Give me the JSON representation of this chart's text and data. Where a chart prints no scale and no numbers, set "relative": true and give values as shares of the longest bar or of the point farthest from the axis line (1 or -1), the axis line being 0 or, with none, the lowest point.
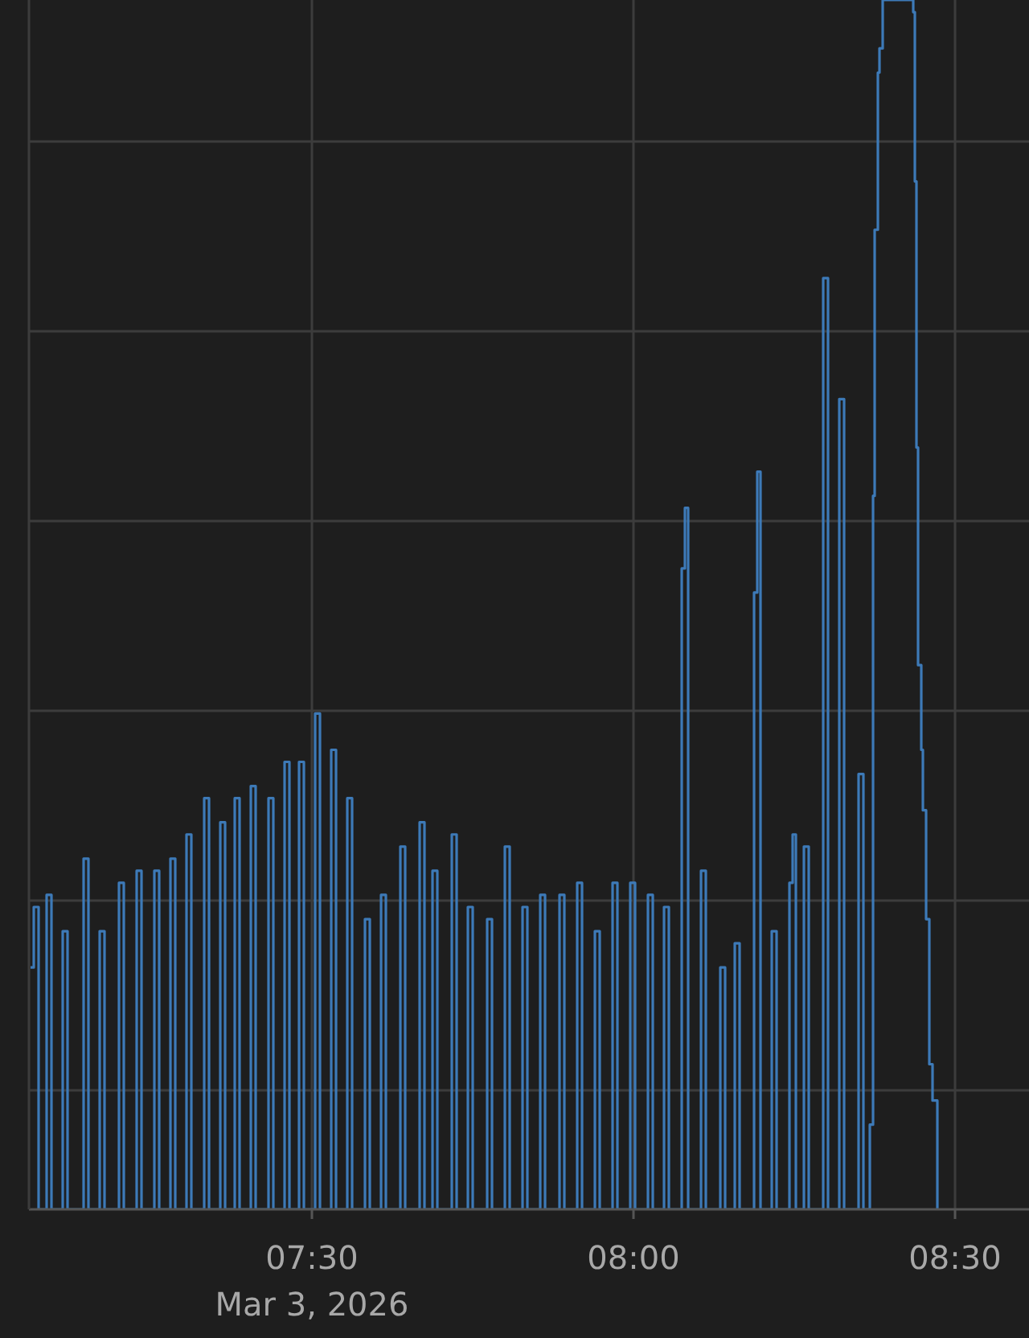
{
  "chart_data": {
    "type": "step",
    "relative": true,
    "grid": true,
    "xlim": [
      "2026-03-03T07:03:36",
      "2026-03-03T08:36:54"
    ],
    "xticks": [
      {
        "value": "2026-03-03T07:30",
        "label": "07:30\nMar 3, 2026"
      },
      {
        "value": "2026-03-03T08:00",
        "label": "08:00"
      },
      {
        "value": "2026-03-03T08:30",
        "label": "08:30"
      }
    ],
    "series": [
      {
        "color": "#3d7ab8",
        "x": [
          "2026-03-03T07:03:45",
          "2026-03-03T07:04:03",
          "2026-03-03T07:04:30",
          "2026-03-03T07:05:15",
          "2026-03-03T07:05:42",
          "2026-03-03T07:06:45",
          "2026-03-03T07:07:12",
          "2026-03-03T07:08:42",
          "2026-03-03T07:09:09",
          "2026-03-03T07:10:12",
          "2026-03-03T07:10:39",
          "2026-03-03T07:12:00",
          "2026-03-03T07:12:27",
          "2026-03-03T07:13:39",
          "2026-03-03T07:14:06",
          "2026-03-03T07:15:18",
          "2026-03-03T07:15:45",
          "2026-03-03T07:16:48",
          "2026-03-03T07:17:15",
          "2026-03-03T07:18:18",
          "2026-03-03T07:18:45",
          "2026-03-03T07:19:57",
          "2026-03-03T07:20:24",
          "2026-03-03T07:21:27",
          "2026-03-03T07:21:54",
          "2026-03-03T07:22:48",
          "2026-03-03T07:23:15",
          "2026-03-03T07:24:18",
          "2026-03-03T07:24:45",
          "2026-03-03T07:25:57",
          "2026-03-03T07:26:24",
          "2026-03-03T07:27:27",
          "2026-03-03T07:27:54",
          "2026-03-03T07:28:48",
          "2026-03-03T07:29:15",
          "2026-03-03T07:30:18",
          "2026-03-03T07:30:45",
          "2026-03-03T07:31:48",
          "2026-03-03T07:32:15",
          "2026-03-03T07:33:18",
          "2026-03-03T07:33:45",
          "2026-03-03T07:34:57",
          "2026-03-03T07:35:24",
          "2026-03-03T07:36:27",
          "2026-03-03T07:36:54",
          "2026-03-03T07:38:15",
          "2026-03-03T07:38:42",
          "2026-03-03T07:40:03",
          "2026-03-03T07:40:30",
          "2026-03-03T07:41:15",
          "2026-03-03T07:41:42",
          "2026-03-03T07:43:03",
          "2026-03-03T07:43:30",
          "2026-03-03T07:44:33",
          "2026-03-03T07:45:00",
          "2026-03-03T07:46:21",
          "2026-03-03T07:46:48",
          "2026-03-03T07:48:00",
          "2026-03-03T07:48:27",
          "2026-03-03T07:49:39",
          "2026-03-03T07:50:06",
          "2026-03-03T07:51:18",
          "2026-03-03T07:51:45",
          "2026-03-03T07:53:06",
          "2026-03-03T07:53:33",
          "2026-03-03T07:54:45",
          "2026-03-03T07:55:12",
          "2026-03-03T07:56:24",
          "2026-03-03T07:56:51",
          "2026-03-03T07:58:03",
          "2026-03-03T07:58:30",
          "2026-03-03T07:59:42",
          "2026-03-03T08:00:09",
          "2026-03-03T08:01:21",
          "2026-03-03T08:01:48",
          "2026-03-03T08:02:51",
          "2026-03-03T08:03:18",
          "2026-03-03T08:04:30",
          "2026-03-03T08:04:48",
          "2026-03-03T08:05:06",
          "2026-03-03T08:06:18",
          "2026-03-03T08:06:45",
          "2026-03-03T08:08:06",
          "2026-03-03T08:08:33",
          "2026-03-03T08:09:27",
          "2026-03-03T08:09:54",
          "2026-03-03T08:11:15",
          "2026-03-03T08:11:33",
          "2026-03-03T08:11:51",
          "2026-03-03T08:12:54",
          "2026-03-03T08:13:21",
          "2026-03-03T08:14:33",
          "2026-03-03T08:14:51",
          "2026-03-03T08:15:09",
          "2026-03-03T08:15:54",
          "2026-03-03T08:16:21",
          "2026-03-03T08:17:42",
          "2026-03-03T08:18:09",
          "2026-03-03T08:19:12",
          "2026-03-03T08:19:39",
          "2026-03-03T08:21:00",
          "2026-03-03T08:21:27",
          "2026-03-03T08:22:03",
          "2026-03-03T08:22:21",
          "2026-03-03T08:22:30",
          "2026-03-03T08:22:48",
          "2026-03-03T08:22:57",
          "2026-03-03T08:23:15",
          "2026-03-03T08:26:06",
          "2026-03-03T08:26:15",
          "2026-03-03T08:26:24",
          "2026-03-03T08:26:33",
          "2026-03-03T08:26:51",
          "2026-03-03T08:27:00",
          "2026-03-03T08:27:18",
          "2026-03-03T08:27:36",
          "2026-03-03T08:27:54",
          "2026-03-03T08:28:21"
        ],
        "values": [
          0.2,
          0.25,
          0,
          0.26,
          0,
          0.23,
          0,
          0.29,
          0,
          0.23,
          0,
          0.27,
          0,
          0.28,
          0,
          0.28,
          0,
          0.29,
          0,
          0.31,
          0,
          0.34,
          0,
          0.32,
          0,
          0.34,
          0,
          0.35,
          0,
          0.34,
          0,
          0.37,
          0,
          0.37,
          0,
          0.41,
          0,
          0.38,
          0,
          0.34,
          0,
          0.24,
          0,
          0.26,
          0,
          0.3,
          0,
          0.32,
          0,
          0.28,
          0,
          0.31,
          0,
          0.25,
          0,
          0.24,
          0,
          0.3,
          0,
          0.25,
          0,
          0.26,
          0,
          0.26,
          0,
          0.27,
          0,
          0.23,
          0,
          0.27,
          0,
          0.27,
          0,
          0.26,
          0,
          0.25,
          0,
          0.53,
          0.58,
          0,
          0.28,
          0,
          0.2,
          0,
          0.22,
          0,
          0.51,
          0.61,
          0,
          0.23,
          0,
          0.27,
          0.31,
          0,
          0.3,
          0,
          0.77,
          0,
          0.67,
          0,
          0.36,
          0,
          0.07,
          0.59,
          0.81,
          0.94,
          0.96,
          1,
          0.99,
          0.85,
          0.63,
          0.45,
          0.38,
          0.33,
          0.24,
          0.12,
          0.09,
          0
        ]
      }
    ]
  }
}
